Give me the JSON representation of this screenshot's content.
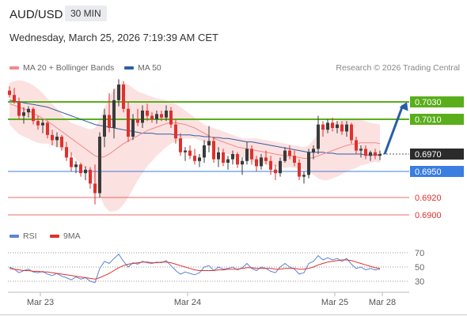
{
  "header": {
    "pair": "AUD/USD",
    "timeframe": "30 MIN",
    "datetime": "Wednesday, March 25, 2026 7:19:39 AM CET"
  },
  "legend": {
    "ma20_label": "MA 20 + Bollinger Bands",
    "ma50_label": "MA 50",
    "credit": "Research © 2026 Trading Central",
    "rsi_label": "RSI",
    "rsi_ma_label": "9MA"
  },
  "colors": {
    "up": "#3a3a3a",
    "down": "#e0312c",
    "ma20": "#f08a8a",
    "band": "#fbd9d9",
    "ma50": "#2e5fa3",
    "resistance": "#5aae1c",
    "support": "#3b7de0",
    "price": "#2b2b2b",
    "target": "#e0312c",
    "arrow": "#2a5ca8",
    "rsi": "#5b86d6",
    "rsi_ma": "#e0312c"
  },
  "chart_data": [
    {
      "type": "candlestick",
      "ylim": [
        0.689,
        0.706
      ],
      "x_ticks": [
        "Mar 23",
        "Mar 24",
        "Mar 25",
        "Mar 28"
      ],
      "levels": [
        {
          "label": "0.7030",
          "value": 0.703,
          "kind": "resistance"
        },
        {
          "label": "0.7010",
          "value": 0.701,
          "kind": "resistance"
        },
        {
          "label": "0.6970",
          "value": 0.697,
          "kind": "price"
        },
        {
          "label": "0.6950",
          "value": 0.695,
          "kind": "support"
        },
        {
          "label": "0.6920",
          "value": 0.692,
          "kind": "target"
        },
        {
          "label": "0.6900",
          "value": 0.69,
          "kind": "target"
        }
      ],
      "projection": {
        "from": 0.697,
        "to": 0.703
      },
      "ohlc": [
        [
          0.7043,
          0.7048,
          0.7035,
          0.7038
        ],
        [
          0.7038,
          0.7046,
          0.7028,
          0.703
        ],
        [
          0.703,
          0.7035,
          0.701,
          0.7014
        ],
        [
          0.7014,
          0.7024,
          0.7005,
          0.7018
        ],
        [
          0.7018,
          0.7025,
          0.7012,
          0.7022
        ],
        [
          0.7022,
          0.7024,
          0.7004,
          0.7008
        ],
        [
          0.7008,
          0.7014,
          0.6998,
          0.7003
        ],
        [
          0.7003,
          0.701,
          0.6994,
          0.7006
        ],
        [
          0.7006,
          0.7008,
          0.6988,
          0.6992
        ],
        [
          0.6992,
          0.6998,
          0.698,
          0.6986
        ],
        [
          0.6986,
          0.6995,
          0.6978,
          0.699
        ],
        [
          0.699,
          0.6992,
          0.6974,
          0.6978
        ],
        [
          0.6978,
          0.6984,
          0.6962,
          0.6966
        ],
        [
          0.6966,
          0.6972,
          0.695,
          0.6955
        ],
        [
          0.6955,
          0.6962,
          0.6948,
          0.6958
        ],
        [
          0.6958,
          0.696,
          0.6944,
          0.6948
        ],
        [
          0.6948,
          0.6956,
          0.694,
          0.6952
        ],
        [
          0.6952,
          0.6955,
          0.693,
          0.6936
        ],
        [
          0.6936,
          0.6958,
          0.6912,
          0.6925
        ],
        [
          0.6925,
          0.6995,
          0.692,
          0.699
        ],
        [
          0.699,
          0.7022,
          0.6978,
          0.7015
        ],
        [
          0.7015,
          0.704,
          0.6995,
          0.7
        ],
        [
          0.7,
          0.7045,
          0.6988,
          0.7032
        ],
        [
          0.7032,
          0.7056,
          0.7025,
          0.705
        ],
        [
          0.705,
          0.7054,
          0.7018,
          0.7022
        ],
        [
          0.7022,
          0.703,
          0.6984,
          0.699
        ],
        [
          0.699,
          0.7016,
          0.6986,
          0.701
        ],
        [
          0.701,
          0.7022,
          0.7002,
          0.7006
        ],
        [
          0.7006,
          0.7026,
          0.7,
          0.702
        ],
        [
          0.702,
          0.7028,
          0.7008,
          0.7014
        ],
        [
          0.7014,
          0.7018,
          0.7006,
          0.701
        ],
        [
          0.701,
          0.702,
          0.7005,
          0.7016
        ],
        [
          0.7016,
          0.702,
          0.7008,
          0.7012
        ],
        [
          0.7012,
          0.7026,
          0.7008,
          0.702
        ],
        [
          0.702,
          0.7024,
          0.7,
          0.7004
        ],
        [
          0.7004,
          0.701,
          0.6982,
          0.6988
        ],
        [
          0.6988,
          0.6994,
          0.6968,
          0.6972
        ],
        [
          0.6972,
          0.6978,
          0.6962,
          0.6974
        ],
        [
          0.6974,
          0.698,
          0.6964,
          0.6968
        ],
        [
          0.6968,
          0.6976,
          0.6958,
          0.6962
        ],
        [
          0.6962,
          0.697,
          0.6955,
          0.6966
        ],
        [
          0.6966,
          0.6986,
          0.696,
          0.698
        ],
        [
          0.698,
          0.7002,
          0.6972,
          0.6985
        ],
        [
          0.6985,
          0.699,
          0.696,
          0.6964
        ],
        [
          0.6964,
          0.6978,
          0.6955,
          0.6972
        ],
        [
          0.6972,
          0.6976,
          0.6956,
          0.696
        ],
        [
          0.696,
          0.6968,
          0.6952,
          0.6964
        ],
        [
          0.6964,
          0.6974,
          0.6958,
          0.697
        ],
        [
          0.697,
          0.6972,
          0.6954,
          0.6958
        ],
        [
          0.6958,
          0.6966,
          0.6946,
          0.6962
        ],
        [
          0.6962,
          0.6984,
          0.6958,
          0.6976
        ],
        [
          0.6976,
          0.698,
          0.6958,
          0.6964
        ],
        [
          0.6964,
          0.6968,
          0.695,
          0.6956
        ],
        [
          0.6956,
          0.697,
          0.6952,
          0.6966
        ],
        [
          0.6966,
          0.6974,
          0.6958,
          0.6962
        ],
        [
          0.6962,
          0.6968,
          0.6946,
          0.6952
        ],
        [
          0.6952,
          0.6958,
          0.694,
          0.6948
        ],
        [
          0.6948,
          0.6966,
          0.6944,
          0.6962
        ],
        [
          0.6962,
          0.6978,
          0.696,
          0.6974
        ],
        [
          0.6974,
          0.698,
          0.6964,
          0.6968
        ],
        [
          0.6968,
          0.6974,
          0.6956,
          0.696
        ],
        [
          0.696,
          0.6964,
          0.694,
          0.6944
        ],
        [
          0.6944,
          0.695,
          0.6936,
          0.6946
        ],
        [
          0.6946,
          0.6976,
          0.6942,
          0.6972
        ],
        [
          0.6972,
          0.698,
          0.6964,
          0.6976
        ],
        [
          0.6976,
          0.7014,
          0.697,
          0.7004
        ],
        [
          0.7004,
          0.7008,
          0.699,
          0.6998
        ],
        [
          0.6998,
          0.701,
          0.6994,
          0.7006
        ],
        [
          0.7006,
          0.7012,
          0.6996,
          0.7
        ],
        [
          0.7,
          0.7008,
          0.6994,
          0.7004
        ],
        [
          0.7004,
          0.7008,
          0.6992,
          0.6996
        ],
        [
          0.6996,
          0.7008,
          0.699,
          0.7004
        ],
        [
          0.7004,
          0.7006,
          0.6982,
          0.6986
        ],
        [
          0.6986,
          0.699,
          0.697,
          0.6974
        ],
        [
          0.6974,
          0.698,
          0.6966,
          0.6976
        ],
        [
          0.6976,
          0.698,
          0.6964,
          0.6968
        ],
        [
          0.6968,
          0.6974,
          0.6962,
          0.6972
        ],
        [
          0.6972,
          0.6976,
          0.6964,
          0.6968
        ],
        [
          0.6968,
          0.6974,
          0.6963,
          0.697
        ]
      ],
      "ma20": [
        0.7028,
        0.7026,
        0.7024,
        0.7022,
        0.702,
        0.7017,
        0.7014,
        0.7011,
        0.7008,
        0.7004,
        0.7,
        0.6996,
        0.6992,
        0.6988,
        0.6984,
        0.698,
        0.6976,
        0.6972,
        0.6968,
        0.6966,
        0.6967,
        0.697,
        0.6974,
        0.6978,
        0.6982,
        0.6985,
        0.6988,
        0.6991,
        0.6994,
        0.6997,
        0.6999,
        0.7001,
        0.7003,
        0.7005,
        0.7006,
        0.7006,
        0.7005,
        0.7004,
        0.7002,
        0.7,
        0.6997,
        0.6994,
        0.6991,
        0.6988,
        0.6986,
        0.6984,
        0.6982,
        0.698,
        0.6978,
        0.6977,
        0.6976,
        0.6975,
        0.6974,
        0.6973,
        0.6972,
        0.6971,
        0.697,
        0.6969,
        0.6968,
        0.6968,
        0.6967,
        0.6966,
        0.6965,
        0.6965,
        0.6966,
        0.6968,
        0.697,
        0.6972,
        0.6974,
        0.6976,
        0.6978,
        0.698,
        0.6981,
        0.6982,
        0.6983,
        0.6983,
        0.6983,
        0.6983,
        0.6982
      ],
      "band_upper": [
        0.7052,
        0.7054,
        0.7055,
        0.7054,
        0.7052,
        0.7049,
        0.7045,
        0.704,
        0.7034,
        0.7028,
        0.7022,
        0.7016,
        0.701,
        0.7006,
        0.7004,
        0.7002,
        0.7,
        0.6998,
        0.7,
        0.701,
        0.7024,
        0.7036,
        0.7044,
        0.705,
        0.7052,
        0.705,
        0.7046,
        0.7042,
        0.704,
        0.7038,
        0.7036,
        0.7034,
        0.7033,
        0.7032,
        0.703,
        0.7028,
        0.7024,
        0.702,
        0.7016,
        0.7012,
        0.7008,
        0.7004,
        0.7002,
        0.7,
        0.6998,
        0.6996,
        0.6994,
        0.6992,
        0.699,
        0.6988,
        0.6988,
        0.6988,
        0.6988,
        0.6987,
        0.6986,
        0.6985,
        0.6984,
        0.6983,
        0.6982,
        0.6981,
        0.698,
        0.6979,
        0.6978,
        0.698,
        0.6986,
        0.6994,
        0.7,
        0.7004,
        0.7006,
        0.7008,
        0.7009,
        0.701,
        0.701,
        0.701,
        0.7009,
        0.7008,
        0.7006,
        0.7005,
        0.7004
      ],
      "band_lower": [
        0.7004,
        0.6998,
        0.6993,
        0.699,
        0.6988,
        0.6985,
        0.6983,
        0.6982,
        0.6982,
        0.698,
        0.6978,
        0.6976,
        0.6974,
        0.697,
        0.6964,
        0.6958,
        0.6952,
        0.6946,
        0.6936,
        0.6922,
        0.691,
        0.6904,
        0.6904,
        0.6906,
        0.6912,
        0.692,
        0.693,
        0.694,
        0.6948,
        0.6956,
        0.6962,
        0.6968,
        0.6973,
        0.6978,
        0.6982,
        0.6984,
        0.6986,
        0.6988,
        0.6988,
        0.6988,
        0.6986,
        0.6984,
        0.698,
        0.6976,
        0.6974,
        0.6972,
        0.697,
        0.6968,
        0.6966,
        0.6966,
        0.6964,
        0.6962,
        0.696,
        0.6959,
        0.6958,
        0.6957,
        0.6956,
        0.6955,
        0.6954,
        0.6955,
        0.6954,
        0.6953,
        0.6952,
        0.695,
        0.6946,
        0.6942,
        0.694,
        0.694,
        0.6942,
        0.6944,
        0.6947,
        0.695,
        0.6952,
        0.6954,
        0.6957,
        0.6958,
        0.696,
        0.6961,
        0.696
      ],
      "ma50": [
        0.7032,
        0.7031,
        0.703,
        0.7029,
        0.7028,
        0.7027,
        0.7026,
        0.7025,
        0.7024,
        0.7022,
        0.702,
        0.7018,
        0.7016,
        0.7014,
        0.7012,
        0.701,
        0.7008,
        0.7006,
        0.7004,
        0.7003,
        0.7002,
        0.7001,
        0.7,
        0.6999,
        0.6998,
        0.6997,
        0.6996,
        0.6995,
        0.6994,
        0.6994,
        0.6994,
        0.6993,
        0.6993,
        0.6993,
        0.6993,
        0.6992,
        0.6992,
        0.6992,
        0.6992,
        0.6991,
        0.6991,
        0.699,
        0.699,
        0.6989,
        0.6989,
        0.6988,
        0.6988,
        0.6987,
        0.6986,
        0.6985,
        0.6984,
        0.6984,
        0.6983,
        0.6982,
        0.6981,
        0.698,
        0.6979,
        0.6978,
        0.6977,
        0.6976,
        0.6975,
        0.6974,
        0.6973,
        0.6972,
        0.6972,
        0.6972,
        0.6972,
        0.6971,
        0.6971,
        0.697,
        0.697,
        0.697,
        0.697,
        0.697,
        0.697,
        0.6969,
        0.6969,
        0.6969,
        0.6969
      ]
    },
    {
      "type": "line",
      "ylim": [
        20,
        80
      ],
      "y_ticks": [
        "70",
        "50",
        "30"
      ],
      "series": [
        {
          "name": "RSI",
          "values": [
            50,
            47,
            42,
            45,
            47,
            43,
            42,
            44,
            40,
            38,
            41,
            37,
            35,
            32,
            36,
            33,
            35,
            30,
            28,
            48,
            58,
            55,
            62,
            68,
            58,
            50,
            56,
            54,
            58,
            56,
            55,
            57,
            56,
            59,
            52,
            45,
            40,
            43,
            41,
            39,
            42,
            50,
            52,
            45,
            50,
            47,
            48,
            50,
            46,
            49,
            55,
            48,
            45,
            50,
            48,
            44,
            42,
            50,
            55,
            50,
            47,
            40,
            42,
            55,
            58,
            66,
            60,
            63,
            60,
            62,
            58,
            62,
            54,
            48,
            50,
            46,
            48,
            46,
            47
          ]
        },
        {
          "name": "9MA",
          "values": [
            48,
            47,
            46,
            45,
            45,
            44,
            44,
            43,
            43,
            42,
            41,
            40,
            39,
            38,
            37,
            36,
            35,
            34,
            33,
            35,
            38,
            41,
            45,
            49,
            52,
            54,
            55,
            56,
            57,
            57,
            56,
            56,
            57,
            57,
            56,
            54,
            52,
            50,
            48,
            46,
            45,
            45,
            45,
            45,
            46,
            46,
            47,
            47,
            47,
            48,
            49,
            49,
            48,
            48,
            48,
            48,
            47,
            47,
            48,
            48,
            48,
            47,
            47,
            48,
            50,
            53,
            55,
            57,
            58,
            59,
            60,
            60,
            59,
            57,
            55,
            53,
            51,
            49,
            48
          ]
        }
      ]
    }
  ]
}
